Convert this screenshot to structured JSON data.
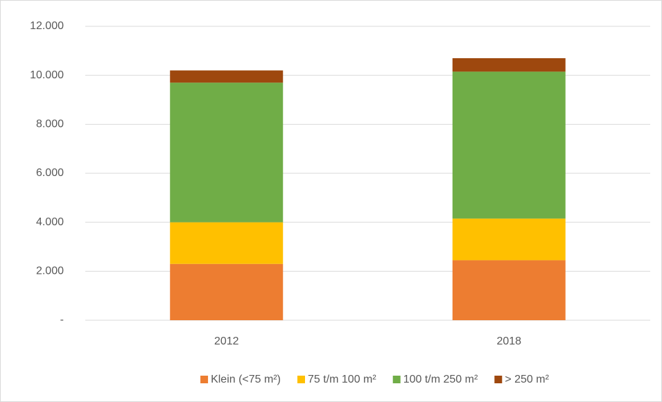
{
  "chart_data": {
    "type": "stacked_bar",
    "categories": [
      "2012",
      "2018"
    ],
    "series": [
      {
        "name": "Klein (<75 m²)",
        "color": "#ed7d31",
        "values": [
          2300,
          2450
        ]
      },
      {
        "name": "75 t/m 100 m²",
        "color": "#ffc000",
        "values": [
          1700,
          1700
        ]
      },
      {
        "name": "100 t/m 250 m²",
        "color": "#70ad47",
        "values": [
          5700,
          6000
        ]
      },
      {
        "name": "> 250 m²",
        "color": "#9e480e",
        "values": [
          500,
          550
        ]
      }
    ],
    "ylim": [
      0,
      12000
    ],
    "yticks": [
      {
        "value": 0,
        "label": "-"
      },
      {
        "value": 2000,
        "label": "2.000"
      },
      {
        "value": 4000,
        "label": "4.000"
      },
      {
        "value": 6000,
        "label": "6.000"
      },
      {
        "value": 8000,
        "label": "8.000"
      },
      {
        "value": 10000,
        "label": "10.000"
      },
      {
        "value": 12000,
        "label": "12.000"
      }
    ],
    "grid": true,
    "legend": "bottom"
  }
}
